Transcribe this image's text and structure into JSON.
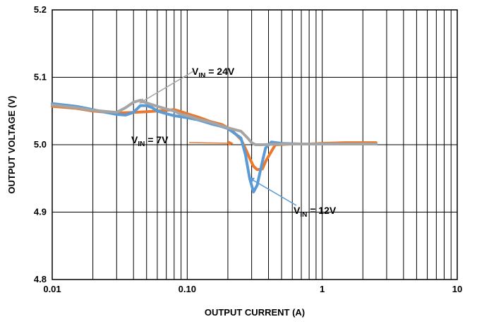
{
  "chart_data": {
    "type": "line",
    "title": "",
    "xlabel": "OUTPUT CURRENT (A)",
    "ylabel": "OUTPUT VOLTAGE (V)",
    "x_scale": "log",
    "xlim": [
      0.01,
      10
    ],
    "ylim": [
      4.8,
      5.2
    ],
    "grid": true,
    "x_ticks": [
      {
        "value": 0.01,
        "label": "0.01"
      },
      {
        "value": 0.1,
        "label": "0.10"
      },
      {
        "value": 1,
        "label": "1"
      },
      {
        "value": 10,
        "label": "10"
      }
    ],
    "y_ticks": [
      {
        "value": 4.8,
        "label": "4.8"
      },
      {
        "value": 4.9,
        "label": "4.9"
      },
      {
        "value": 5.0,
        "label": "5.0"
      },
      {
        "value": 5.1,
        "label": "5.1"
      },
      {
        "value": 5.2,
        "label": "5.2"
      }
    ],
    "series": [
      {
        "name": "VIN = 7V",
        "color": "#E8792E",
        "points": [
          [
            0.01,
            5.057
          ],
          [
            0.015,
            5.054
          ],
          [
            0.02,
            5.05
          ],
          [
            0.03,
            5.047
          ],
          [
            0.04,
            5.048
          ],
          [
            0.05,
            5.049
          ],
          [
            0.06,
            5.05
          ],
          [
            0.08,
            5.052
          ],
          [
            0.09,
            5.049
          ],
          [
            0.1,
            5.046
          ],
          [
            0.12,
            5.041
          ],
          [
            0.15,
            5.034
          ],
          [
            0.18,
            5.03
          ],
          [
            0.2,
            5.025
          ],
          [
            0.22,
            5.019
          ],
          [
            0.25,
            5.008
          ],
          [
            0.27,
            4.994
          ],
          [
            0.29,
            4.98
          ],
          [
            0.31,
            4.968
          ],
          [
            0.33,
            4.963
          ],
          [
            0.36,
            4.964
          ],
          [
            0.38,
            4.975
          ],
          [
            0.42,
            4.99
          ],
          [
            0.45,
            5.0
          ],
          [
            0.6,
            5.001
          ],
          [
            0.8,
            5.001
          ],
          [
            1.0,
            5.002
          ],
          [
            1.5,
            5.003
          ],
          [
            2.0,
            5.003
          ],
          [
            2.5,
            5.003
          ]
        ]
      },
      {
        "name": "VIN = 12V",
        "color": "#5B9BD5",
        "points": [
          [
            0.01,
            5.061
          ],
          [
            0.015,
            5.057
          ],
          [
            0.02,
            5.052
          ],
          [
            0.025,
            5.048
          ],
          [
            0.03,
            5.045
          ],
          [
            0.035,
            5.044
          ],
          [
            0.04,
            5.048
          ],
          [
            0.045,
            5.058
          ],
          [
            0.05,
            5.058
          ],
          [
            0.055,
            5.055
          ],
          [
            0.06,
            5.05
          ],
          [
            0.07,
            5.046
          ],
          [
            0.08,
            5.043
          ],
          [
            0.1,
            5.04
          ],
          [
            0.12,
            5.037
          ],
          [
            0.15,
            5.031
          ],
          [
            0.18,
            5.027
          ],
          [
            0.2,
            5.024
          ],
          [
            0.22,
            5.018
          ],
          [
            0.25,
            5.01
          ],
          [
            0.27,
            4.985
          ],
          [
            0.29,
            4.95
          ],
          [
            0.31,
            4.93
          ],
          [
            0.33,
            4.94
          ],
          [
            0.36,
            4.975
          ],
          [
            0.38,
            4.995
          ],
          [
            0.42,
            5.004
          ],
          [
            0.5,
            5.002
          ],
          [
            0.7,
            5.001
          ],
          [
            1.0,
            5.001
          ],
          [
            1.5,
            5.001
          ],
          [
            2.0,
            5.001
          ],
          [
            2.5,
            5.001
          ]
        ]
      },
      {
        "name": "VIN = 24V",
        "color": "#A5A5A5",
        "points": [
          [
            0.01,
            5.059
          ],
          [
            0.015,
            5.055
          ],
          [
            0.02,
            5.051
          ],
          [
            0.03,
            5.048
          ],
          [
            0.035,
            5.055
          ],
          [
            0.04,
            5.063
          ],
          [
            0.045,
            5.066
          ],
          [
            0.05,
            5.062
          ],
          [
            0.06,
            5.057
          ],
          [
            0.07,
            5.053
          ],
          [
            0.08,
            5.05
          ],
          [
            0.09,
            5.045
          ],
          [
            0.1,
            5.043
          ],
          [
            0.12,
            5.038
          ],
          [
            0.15,
            5.033
          ],
          [
            0.18,
            5.028
          ],
          [
            0.2,
            5.025
          ],
          [
            0.25,
            5.02
          ],
          [
            0.28,
            5.01
          ],
          [
            0.3,
            5.003
          ],
          [
            0.32,
            5.0
          ],
          [
            0.36,
            5.0
          ],
          [
            0.5,
            5.001
          ],
          [
            0.7,
            5.001
          ],
          [
            1.0,
            5.001
          ],
          [
            1.5,
            5.001
          ],
          [
            2.0,
            5.001
          ],
          [
            2.5,
            5.001
          ]
        ]
      }
    ],
    "annotations": [
      {
        "series": 2,
        "main": "V",
        "sub": "IN",
        "rest": " = 24V",
        "target": [
          0.045,
          5.066
        ]
      },
      {
        "series": 0,
        "main": "V",
        "sub": "IN",
        "rest": " = 7V",
        "target": [
          0.27,
          5.0
        ]
      },
      {
        "series": 1,
        "main": "V",
        "sub": "IN",
        "rest": " = 12V",
        "target": [
          0.35,
          4.94
        ]
      }
    ]
  }
}
